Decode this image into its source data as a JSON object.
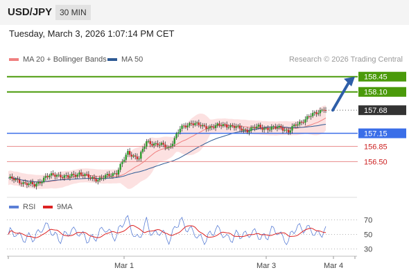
{
  "header": {
    "pair": "USD/JPY",
    "timeframe": "30 MIN"
  },
  "datetime": "Tuesday, March 3, 2026 1:07:14 PM CET",
  "legend": {
    "items": [
      {
        "label": "MA 20 + Bollinger Bands",
        "color": "#f08080"
      },
      {
        "label": "MA 50",
        "color": "#2e5a94"
      }
    ],
    "credit": "Research © 2026 Trading Central"
  },
  "rsi_legend": {
    "items": [
      {
        "label": "RSI",
        "color": "#5b7fd6"
      },
      {
        "label": "9MA",
        "color": "#dd2222"
      }
    ]
  },
  "chart_data": [
    {
      "type": "candlestick",
      "x_ticks": [
        "Mar 1",
        "Mar 3",
        "Mar 4"
      ],
      "current_price": 157.68,
      "levels": [
        {
          "value": 158.45,
          "label": "158.45",
          "kind": "resistance",
          "color": "#4a9a0a"
        },
        {
          "value": 158.1,
          "label": "158.10",
          "kind": "resistance",
          "color": "#4a9a0a"
        },
        {
          "value": 157.68,
          "label": "157.68",
          "kind": "last",
          "color": "#333333"
        },
        {
          "value": 157.15,
          "label": "157.15",
          "kind": "pivot",
          "color": "#3a6ee8"
        },
        {
          "value": 156.85,
          "label": "156.85",
          "kind": "support",
          "color": "#cc2222"
        },
        {
          "value": 156.5,
          "label": "156.50",
          "kind": "support",
          "color": "#cc2222"
        }
      ],
      "ylim": [
        155.76,
        158.62
      ],
      "arrow": {
        "from": 157.68,
        "to": 158.45,
        "direction": "up"
      },
      "series": [
        {
          "name": "MA 20 + Bollinger Bands",
          "color": "#f08080"
        },
        {
          "name": "MA 50",
          "color": "#2e5a94"
        }
      ]
    },
    {
      "type": "line",
      "y_ticks": [
        70,
        50,
        30
      ],
      "ylim": [
        22,
        82
      ],
      "series": [
        {
          "name": "RSI",
          "color": "#5b7fd6"
        },
        {
          "name": "9MA",
          "color": "#dd2222"
        }
      ]
    }
  ]
}
